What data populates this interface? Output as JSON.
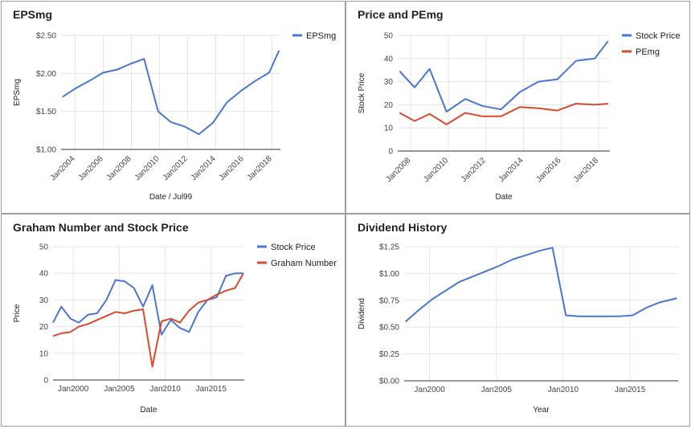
{
  "chart_data": [
    {
      "type": "line",
      "title": "EPSmg",
      "xlabel": "Date / Jul99",
      "ylabel": "EPSmg",
      "ylim": [
        1.0,
        2.5
      ],
      "xlim": [
        2003.0,
        2018.6
      ],
      "yticks": [
        {
          "value": 1.0,
          "label": "$1.00"
        },
        {
          "value": 1.5,
          "label": "$1.50"
        },
        {
          "value": 2.0,
          "label": "$2.00"
        },
        {
          "value": 2.5,
          "label": "$2.50"
        }
      ],
      "xticks": [
        {
          "value": 2004,
          "label": "Jan2004"
        },
        {
          "value": 2006,
          "label": "Jan2006"
        },
        {
          "value": 2008,
          "label": "Jan2008"
        },
        {
          "value": 2010,
          "label": "Jan2010"
        },
        {
          "value": 2012,
          "label": "Jan2012"
        },
        {
          "value": 2014,
          "label": "Jan2014"
        },
        {
          "value": 2016,
          "label": "Jan2016"
        },
        {
          "value": 2018,
          "label": "Jan2018"
        }
      ],
      "xtick_rotate": true,
      "vgrid": true,
      "legend": "top-right",
      "series": [
        {
          "name": "EPSmg",
          "color": "#4a76d4",
          "x": [
            2003.1,
            2004,
            2005,
            2006,
            2007,
            2008,
            2008.9,
            2009.9,
            2010.8,
            2011.8,
            2012.8,
            2013.8,
            2014.8,
            2015.8,
            2016.8,
            2017.8,
            2018.5
          ],
          "y": [
            1.69,
            1.8,
            1.9,
            2.01,
            2.05,
            2.13,
            2.19,
            1.5,
            1.36,
            1.3,
            1.2,
            1.35,
            1.62,
            1.77,
            1.9,
            2.01,
            2.3
          ]
        }
      ]
    },
    {
      "type": "line",
      "title": "Price and PEmg",
      "xlabel": "Date",
      "ylabel": "Stock Price",
      "ylim": [
        0,
        50
      ],
      "xlim": [
        2007.3,
        2018.6
      ],
      "yticks": [
        {
          "value": 0,
          "label": "0"
        },
        {
          "value": 10,
          "label": "10"
        },
        {
          "value": 20,
          "label": "20"
        },
        {
          "value": 30,
          "label": "30"
        },
        {
          "value": 40,
          "label": "40"
        },
        {
          "value": 50,
          "label": "50"
        }
      ],
      "xticks": [
        {
          "value": 2008,
          "label": "Jan2008"
        },
        {
          "value": 2010,
          "label": "Jan2010"
        },
        {
          "value": 2012,
          "label": "Jan2012"
        },
        {
          "value": 2014,
          "label": "Jan2014"
        },
        {
          "value": 2016,
          "label": "Jan2016"
        },
        {
          "value": 2018,
          "label": "Jan2018"
        }
      ],
      "xtick_rotate": true,
      "vgrid": true,
      "legend": "top-right",
      "series": [
        {
          "name": "Stock Price",
          "color": "#4a76d4",
          "x": [
            2007.4,
            2008.2,
            2009.0,
            2009.9,
            2010.9,
            2011.8,
            2012.8,
            2013.8,
            2014.8,
            2015.8,
            2016.8,
            2017.8,
            2018.5
          ],
          "y": [
            34.5,
            27.5,
            35.5,
            17.0,
            22.5,
            19.5,
            18.0,
            25.5,
            30.0,
            31.0,
            39.0,
            40.0,
            47.5
          ]
        },
        {
          "name": "PEmg",
          "color": "#db4a30",
          "x": [
            2007.4,
            2008.2,
            2009.0,
            2009.9,
            2010.9,
            2011.8,
            2012.8,
            2013.8,
            2014.8,
            2015.8,
            2016.8,
            2017.8,
            2018.5
          ],
          "y": [
            16.5,
            13.0,
            16.0,
            11.5,
            16.5,
            15.0,
            15.0,
            19.0,
            18.5,
            17.5,
            20.5,
            20.0,
            20.5
          ]
        }
      ]
    },
    {
      "type": "line",
      "title": "Graham Number and Stock Price",
      "xlabel": "Date",
      "ylabel": "Price",
      "ylim": [
        0,
        50
      ],
      "xlim": [
        1997.8,
        2018.6
      ],
      "yticks": [
        {
          "value": 0,
          "label": "0"
        },
        {
          "value": 10,
          "label": "10"
        },
        {
          "value": 20,
          "label": "20"
        },
        {
          "value": 30,
          "label": "30"
        },
        {
          "value": 40,
          "label": "40"
        },
        {
          "value": 50,
          "label": "50"
        }
      ],
      "xticks": [
        {
          "value": 2000,
          "label": "Jan2000"
        },
        {
          "value": 2005,
          "label": "Jan2005"
        },
        {
          "value": 2010,
          "label": "Jan2010"
        },
        {
          "value": 2015,
          "label": "Jan2015"
        }
      ],
      "xtick_rotate": false,
      "vgrid": true,
      "legend": "top-right",
      "series": [
        {
          "name": "Stock Price",
          "color": "#4a76d4",
          "x": [
            1997.8,
            1998.7,
            1999.7,
            2000.6,
            2001.6,
            2002.6,
            2003.6,
            2004.6,
            2005.6,
            2006.6,
            2007.6,
            2008.6,
            2009.6,
            2010.6,
            2011.6,
            2012.6,
            2013.6,
            2014.6,
            2015.6,
            2016.6,
            2017.6,
            2018.5
          ],
          "y": [
            21.5,
            27.5,
            23.0,
            21.5,
            24.5,
            25.0,
            30.0,
            37.5,
            37.0,
            34.5,
            27.5,
            35.5,
            17.0,
            22.5,
            19.5,
            18.0,
            25.5,
            30.0,
            31.0,
            39.0,
            40.0,
            40.0
          ]
        },
        {
          "name": "Graham Number",
          "color": "#db4a30",
          "x": [
            1997.8,
            1998.7,
            1999.7,
            2000.6,
            2001.6,
            2002.6,
            2003.6,
            2004.6,
            2005.6,
            2006.6,
            2007.6,
            2008.6,
            2009.6,
            2010.6,
            2011.6,
            2012.6,
            2013.6,
            2014.6,
            2015.6,
            2016.6,
            2017.6,
            2018.5
          ],
          "y": [
            16.5,
            17.5,
            18.0,
            20.0,
            21.0,
            22.5,
            24.0,
            25.5,
            25.0,
            26.0,
            26.5,
            5.0,
            22.0,
            23.0,
            21.5,
            26.0,
            29.0,
            30.0,
            32.0,
            33.5,
            34.5,
            40.0
          ]
        }
      ]
    },
    {
      "type": "line",
      "title": "Dividend History",
      "xlabel": "Year",
      "ylabel": "Dividend",
      "ylim": [
        0,
        1.25
      ],
      "xlim": [
        1998.1,
        2018.6
      ],
      "yticks": [
        {
          "value": 0,
          "label": "$0.00"
        },
        {
          "value": 0.25,
          "label": "$0.25"
        },
        {
          "value": 0.5,
          "label": "$0.50"
        },
        {
          "value": 0.75,
          "label": "$0.75"
        },
        {
          "value": 1.0,
          "label": "$1.00"
        },
        {
          "value": 1.25,
          "label": "$1.25"
        }
      ],
      "xticks": [
        {
          "value": 2000,
          "label": "Jan2000"
        },
        {
          "value": 2005,
          "label": "Jan2005"
        },
        {
          "value": 2010,
          "label": "Jan2010"
        },
        {
          "value": 2015,
          "label": "Jan2015"
        }
      ],
      "xtick_rotate": false,
      "vgrid": true,
      "legend": "none",
      "series": [
        {
          "name": "",
          "color": "#4a76d4",
          "x": [
            1998.2,
            1999.2,
            2000.2,
            2001.2,
            2002.2,
            2003.2,
            2004.2,
            2005.2,
            2006.2,
            2007.2,
            2008.2,
            2009.2,
            2010.2,
            2011.2,
            2012.2,
            2013.2,
            2014.2,
            2015.2,
            2016.2,
            2017.2,
            2018.5
          ],
          "y": [
            0.55,
            0.66,
            0.76,
            0.84,
            0.92,
            0.97,
            1.02,
            1.07,
            1.13,
            1.17,
            1.21,
            1.24,
            0.61,
            0.6,
            0.6,
            0.6,
            0.6,
            0.61,
            0.68,
            0.73,
            0.77
          ]
        }
      ]
    }
  ]
}
